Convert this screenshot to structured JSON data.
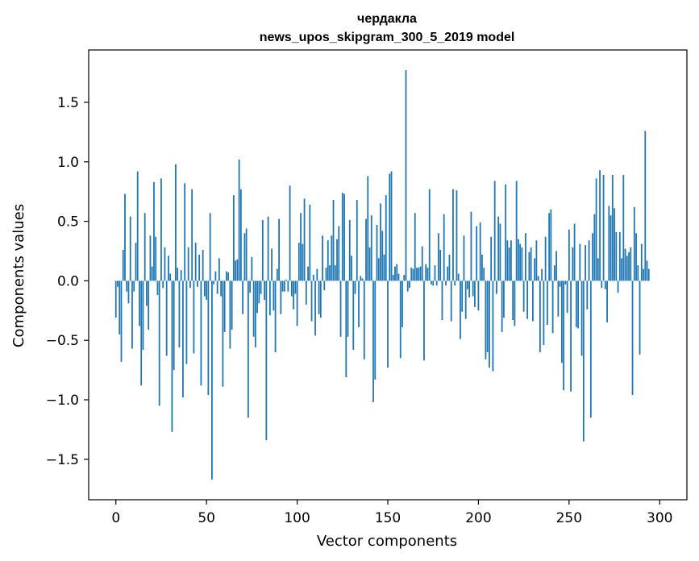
{
  "chart_data": {
    "type": "bar",
    "title_lines": [
      "чердакла",
      "news_upos_skipgram_300_5_2019 model"
    ],
    "xlabel": "Vector components",
    "ylabel": "Components values",
    "xlim": [
      -15,
      315
    ],
    "ylim": [
      -1.84,
      1.94
    ],
    "xticks": [
      0,
      50,
      100,
      150,
      200,
      250,
      300
    ],
    "yticks": [
      -1.5,
      -1.0,
      -0.5,
      0.0,
      0.5,
      1.0,
      1.5
    ],
    "ytick_labels": [
      "−1.5",
      "−1.0",
      "−0.5",
      "0.0",
      "0.5",
      "1.0",
      "1.5"
    ],
    "grid": false,
    "bar_color": "#1f77b4",
    "values": [
      -0.31,
      -0.05,
      -0.45,
      -0.68,
      0.26,
      0.73,
      -0.09,
      -0.19,
      0.54,
      -0.57,
      -0.09,
      0.32,
      0.92,
      -0.38,
      -0.88,
      -0.58,
      0.57,
      -0.21,
      -0.41,
      0.38,
      0.12,
      0.83,
      0.37,
      -0.12,
      -1.05,
      0.86,
      -0.06,
      0.28,
      -0.63,
      0.21,
      0.06,
      -1.27,
      -0.75,
      0.98,
      0.11,
      -0.56,
      0.09,
      -0.98,
      0.82,
      -0.7,
      0.28,
      -0.06,
      0.77,
      -0.61,
      0.32,
      -0.05,
      0.22,
      -0.88,
      0.26,
      -0.13,
      -0.16,
      -0.96,
      0.57,
      -1.67,
      -0.03,
      0.08,
      -0.11,
      0.19,
      -0.13,
      -0.89,
      -0.43,
      0.08,
      0.07,
      -0.57,
      -0.41,
      0.72,
      0.17,
      0.18,
      1.02,
      0.77,
      -0.28,
      0.4,
      0.44,
      -1.15,
      -0.1,
      0.2,
      -0.47,
      -0.56,
      -0.27,
      -0.19,
      -0.11,
      0.51,
      -0.16,
      -1.34,
      0.54,
      -0.29,
      0.27,
      -0.25,
      -0.6,
      0.1,
      0.52,
      -0.28,
      -0.09,
      -0.09,
      0.01,
      -0.09,
      0.8,
      -0.13,
      -0.24,
      -0.11,
      -0.38,
      0.32,
      0.57,
      0.31,
      0.69,
      -0.2,
      0.12,
      0.64,
      -0.34,
      0.05,
      -0.46,
      0.1,
      -0.28,
      -0.31,
      0.38,
      -0.08,
      0.11,
      0.34,
      0.13,
      0.38,
      0.68,
      0.13,
      0.35,
      0.46,
      -0.47,
      0.74,
      0.73,
      -0.81,
      -0.47,
      0.51,
      0.21,
      -0.58,
      -0.11,
      0.68,
      -0.39,
      0.04,
      0.02,
      -0.66,
      0.52,
      0.88,
      0.28,
      0.55,
      -1.02,
      -0.83,
      0.47,
      0.19,
      0.65,
      0.42,
      0.22,
      0.72,
      -0.73,
      0.9,
      0.92,
      0.05,
      0.12,
      0.14,
      0.06,
      -0.65,
      -0.39,
      0.05,
      1.77,
      -0.09,
      -0.06,
      0.11,
      0.1,
      0.57,
      0.11,
      0.11,
      0.12,
      0.29,
      -0.67,
      0.14,
      0.11,
      0.77,
      -0.03,
      -0.04,
      0.13,
      -0.04,
      0.4,
      0.26,
      -0.33,
      0.56,
      -0.04,
      0.12,
      0.22,
      -0.34,
      0.77,
      -0.04,
      0.76,
      0.06,
      -0.49,
      -0.26,
      0.38,
      -0.32,
      -0.07,
      -0.14,
      0.58,
      -0.13,
      -0.22,
      0.46,
      -0.25,
      0.49,
      0.22,
      0.11,
      -0.66,
      -0.6,
      -0.73,
      0.37,
      -0.76,
      0.84,
      -0.11,
      0.54,
      0.48,
      -0.43,
      -0.31,
      0.81,
      0.34,
      0.28,
      0.34,
      -0.33,
      -0.38,
      0.84,
      0.35,
      0.31,
      0.28,
      -0.26,
      0.4,
      -0.32,
      0.24,
      0.28,
      -0.34,
      0.19,
      0.34,
      0.04,
      -0.6,
      0.1,
      -0.54,
      0.37,
      -0.37,
      0.57,
      0.6,
      -0.44,
      0.13,
      0.25,
      -0.3,
      -0.05,
      -0.69,
      -0.92,
      -0.03,
      -0.27,
      0.43,
      -0.93,
      0.28,
      0.48,
      -0.39,
      -0.4,
      0.31,
      -0.63,
      -1.35,
      0.3,
      -0.24,
      0.34,
      -1.15,
      0.4,
      0.56,
      0.86,
      0.19,
      0.93,
      -0.06,
      0.89,
      -0.07,
      -0.35,
      0.63,
      0.55,
      0.89,
      0.61,
      0.41,
      -0.1,
      0.41,
      0.19,
      0.89,
      0.27,
      0.21,
      0.24,
      0.28,
      -0.96,
      0.62,
      0.4,
      0.13,
      -0.62,
      0.31,
      0.1,
      1.26,
      0.17,
      0.1
    ]
  }
}
